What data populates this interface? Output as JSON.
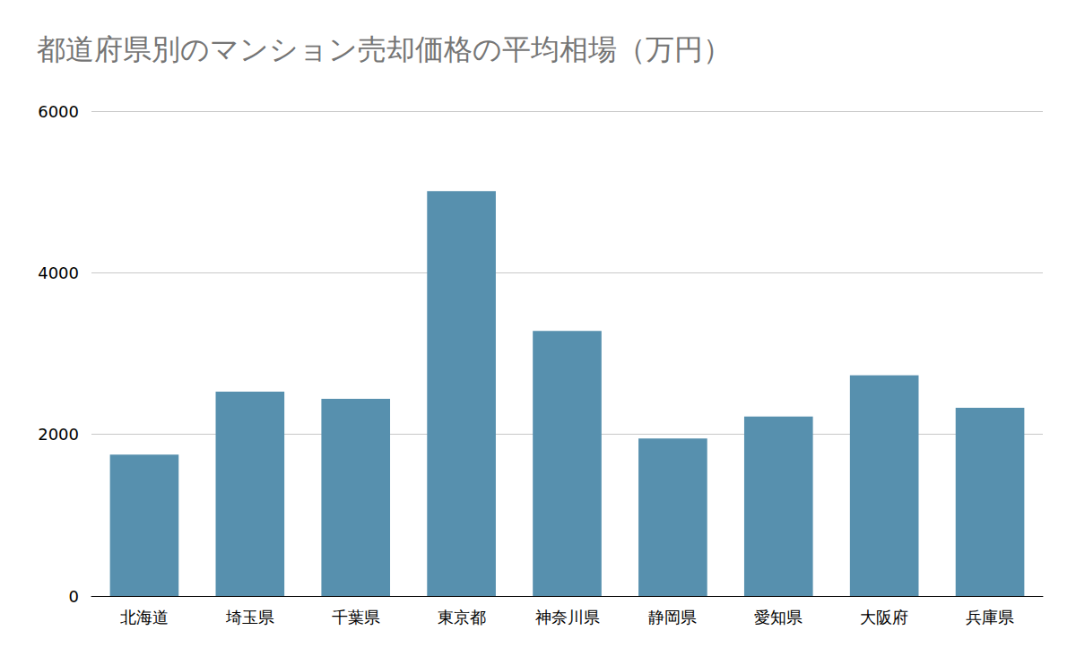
{
  "chart_data": {
    "type": "bar",
    "title": "都道府県別のマンション売却価格の平均相場（万円）",
    "categories": [
      "北海道",
      "埼玉県",
      "千葉県",
      "東京都",
      "神奈川県",
      "静岡県",
      "愛知県",
      "大阪府",
      "兵庫県"
    ],
    "values": [
      1750,
      2530,
      2440,
      5010,
      3280,
      1950,
      2220,
      2730,
      2330
    ],
    "color": "#5790ae",
    "ylim": [
      0,
      6000
    ],
    "yticks": [
      0,
      2000,
      4000,
      6000
    ],
    "grid": true
  }
}
